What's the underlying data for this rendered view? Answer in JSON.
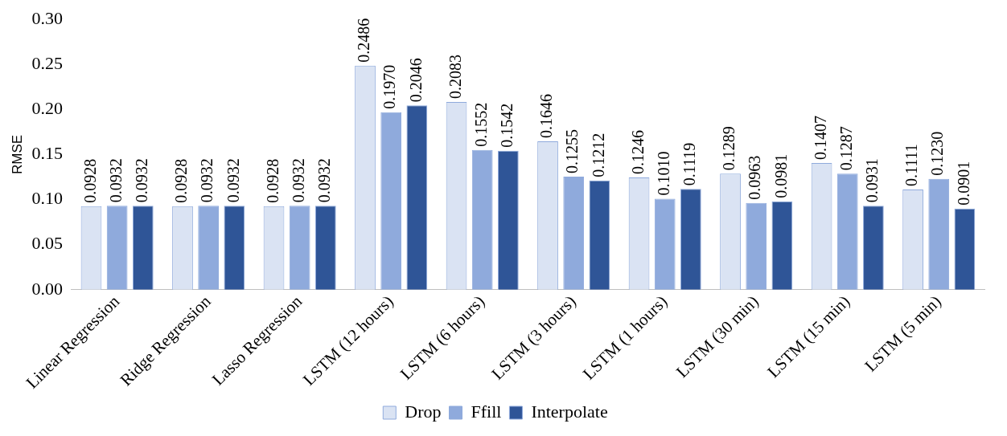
{
  "chart_data": {
    "type": "bar",
    "ylabel": "RMSE",
    "categories": [
      "Linear Regression",
      "Ridge Regression",
      "Lasso Regression",
      "LSTM (12 hours)",
      "LSTM (6 hours)",
      "LSTM (3 hours)",
      "LSTM (1 hours)",
      "LSTM (30 min)",
      "LSTM (15 min)",
      "LSTM (5 min)"
    ],
    "series": [
      {
        "name": "Drop",
        "color": "#dae3f3",
        "values": [
          0.0928,
          0.0928,
          0.0928,
          0.2486,
          0.2083,
          0.1646,
          0.1246,
          0.1289,
          0.1407,
          0.1111
        ],
        "value_labels": [
          "0.0928",
          "0.0928",
          "0.0928",
          "0.2486",
          "0.2083",
          "0.1646",
          "0.1246",
          "0.1289",
          "0.1407",
          "0.1111"
        ]
      },
      {
        "name": "Ffill",
        "color": "#8faadc",
        "values": [
          0.0932,
          0.0932,
          0.0932,
          0.197,
          0.1552,
          0.1255,
          0.101,
          0.0963,
          0.1287,
          0.123
        ],
        "value_labels": [
          "0.0932",
          "0.0932",
          "0.0932",
          "0.1970",
          "0.1552",
          "0.1255",
          "0.1010",
          "0.0963",
          "0.1287",
          "0.1230"
        ]
      },
      {
        "name": "Interpolate",
        "color": "#2f5597",
        "values": [
          0.0932,
          0.0932,
          0.0932,
          0.2046,
          0.1542,
          0.1212,
          0.1119,
          0.0981,
          0.0931,
          0.0901
        ],
        "value_labels": [
          "0.0932",
          "0.0932",
          "0.0932",
          "0.2046",
          "0.1542",
          "0.1212",
          "0.1119",
          "0.0981",
          "0.0931",
          "0.0901"
        ]
      }
    ],
    "ylim": [
      0,
      0.3
    ],
    "yticks": [
      {
        "value": 0,
        "label": "0.00"
      },
      {
        "value": 0.05,
        "label": "0.05"
      },
      {
        "value": 0.1,
        "label": "0.10"
      },
      {
        "value": 0.15,
        "label": "0.15"
      },
      {
        "value": 0.2,
        "label": "0.20"
      },
      {
        "value": 0.25,
        "label": "0.25"
      },
      {
        "value": 0.3,
        "label": "0.30"
      }
    ],
    "grid": false,
    "legend": "bottom"
  }
}
